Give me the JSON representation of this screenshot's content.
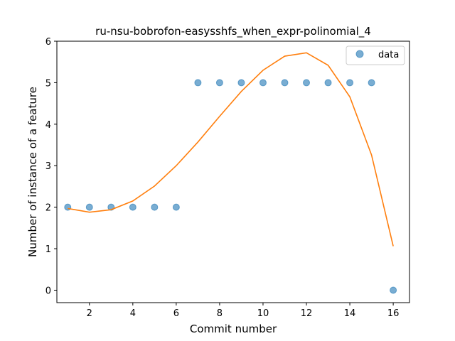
{
  "chart_data": {
    "type": "scatter",
    "title": "ru-nsu-bobrofon-easysshfs_when_expr-polinomial_4",
    "xlabel": "Commit number",
    "ylabel": "Number of instance of a feature",
    "xlim": [
      0.5,
      16.75
    ],
    "ylim": [
      -0.3,
      6.0
    ],
    "xticks": [
      2,
      4,
      6,
      8,
      10,
      12,
      14,
      16
    ],
    "yticks": [
      0,
      1,
      2,
      3,
      4,
      5,
      6
    ],
    "legend": {
      "placement": "top-right",
      "entries": [
        "data"
      ]
    },
    "grid": false,
    "series": [
      {
        "name": "data",
        "kind": "scatter",
        "color": "#1f77b4",
        "x": [
          1,
          2,
          3,
          4,
          5,
          6,
          7,
          8,
          9,
          10,
          11,
          12,
          13,
          14,
          15,
          16
        ],
        "y": [
          2,
          2,
          2,
          2,
          2,
          2,
          5,
          5,
          5,
          5,
          5,
          5,
          5,
          5,
          5,
          0
        ]
      },
      {
        "kind": "line",
        "color": "#ff7f0e",
        "x": [
          1,
          2,
          3,
          4,
          5,
          6,
          7,
          8,
          9,
          10,
          11,
          12,
          13,
          14,
          15,
          16
        ],
        "y": [
          1.97,
          1.88,
          1.94,
          2.15,
          2.51,
          3.0,
          3.57,
          4.19,
          4.79,
          5.3,
          5.64,
          5.72,
          5.42,
          4.66,
          3.26,
          1.06
        ]
      }
    ]
  }
}
